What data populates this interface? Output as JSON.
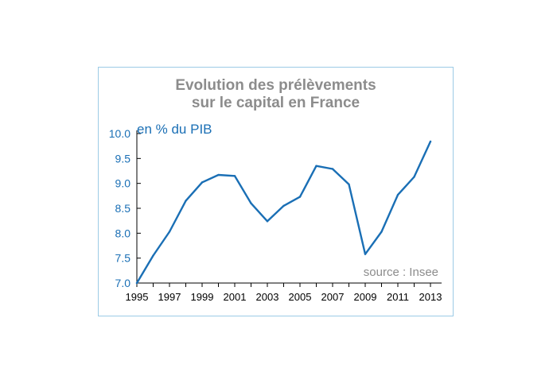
{
  "chart_data": {
    "type": "line",
    "title_lines": [
      "Evolution des prélèvements",
      "sur le capital en France"
    ],
    "ylabel": "en % du PIB",
    "source": "source : Insee",
    "x": [
      1995,
      1996,
      1997,
      1998,
      1999,
      2000,
      2001,
      2002,
      2003,
      2004,
      2005,
      2006,
      2007,
      2008,
      2009,
      2010,
      2011,
      2012,
      2013
    ],
    "values": [
      7.0,
      7.55,
      8.03,
      8.65,
      9.02,
      9.17,
      9.15,
      8.6,
      8.24,
      8.55,
      8.73,
      9.35,
      9.29,
      8.98,
      7.58,
      8.03,
      8.77,
      9.13,
      9.84
    ],
    "x_ticks": [
      "1995",
      "1997",
      "1999",
      "2001",
      "2003",
      "2005",
      "2007",
      "2009",
      "2011",
      "2013"
    ],
    "y_ticks": [
      "7.0",
      "7.5",
      "8.0",
      "8.5",
      "9.0",
      "9.5",
      "10.0"
    ],
    "ylim": [
      7.0,
      10.0
    ],
    "xlim": [
      1995,
      2013
    ],
    "grid": false,
    "line_color": "#1a6fb5"
  }
}
